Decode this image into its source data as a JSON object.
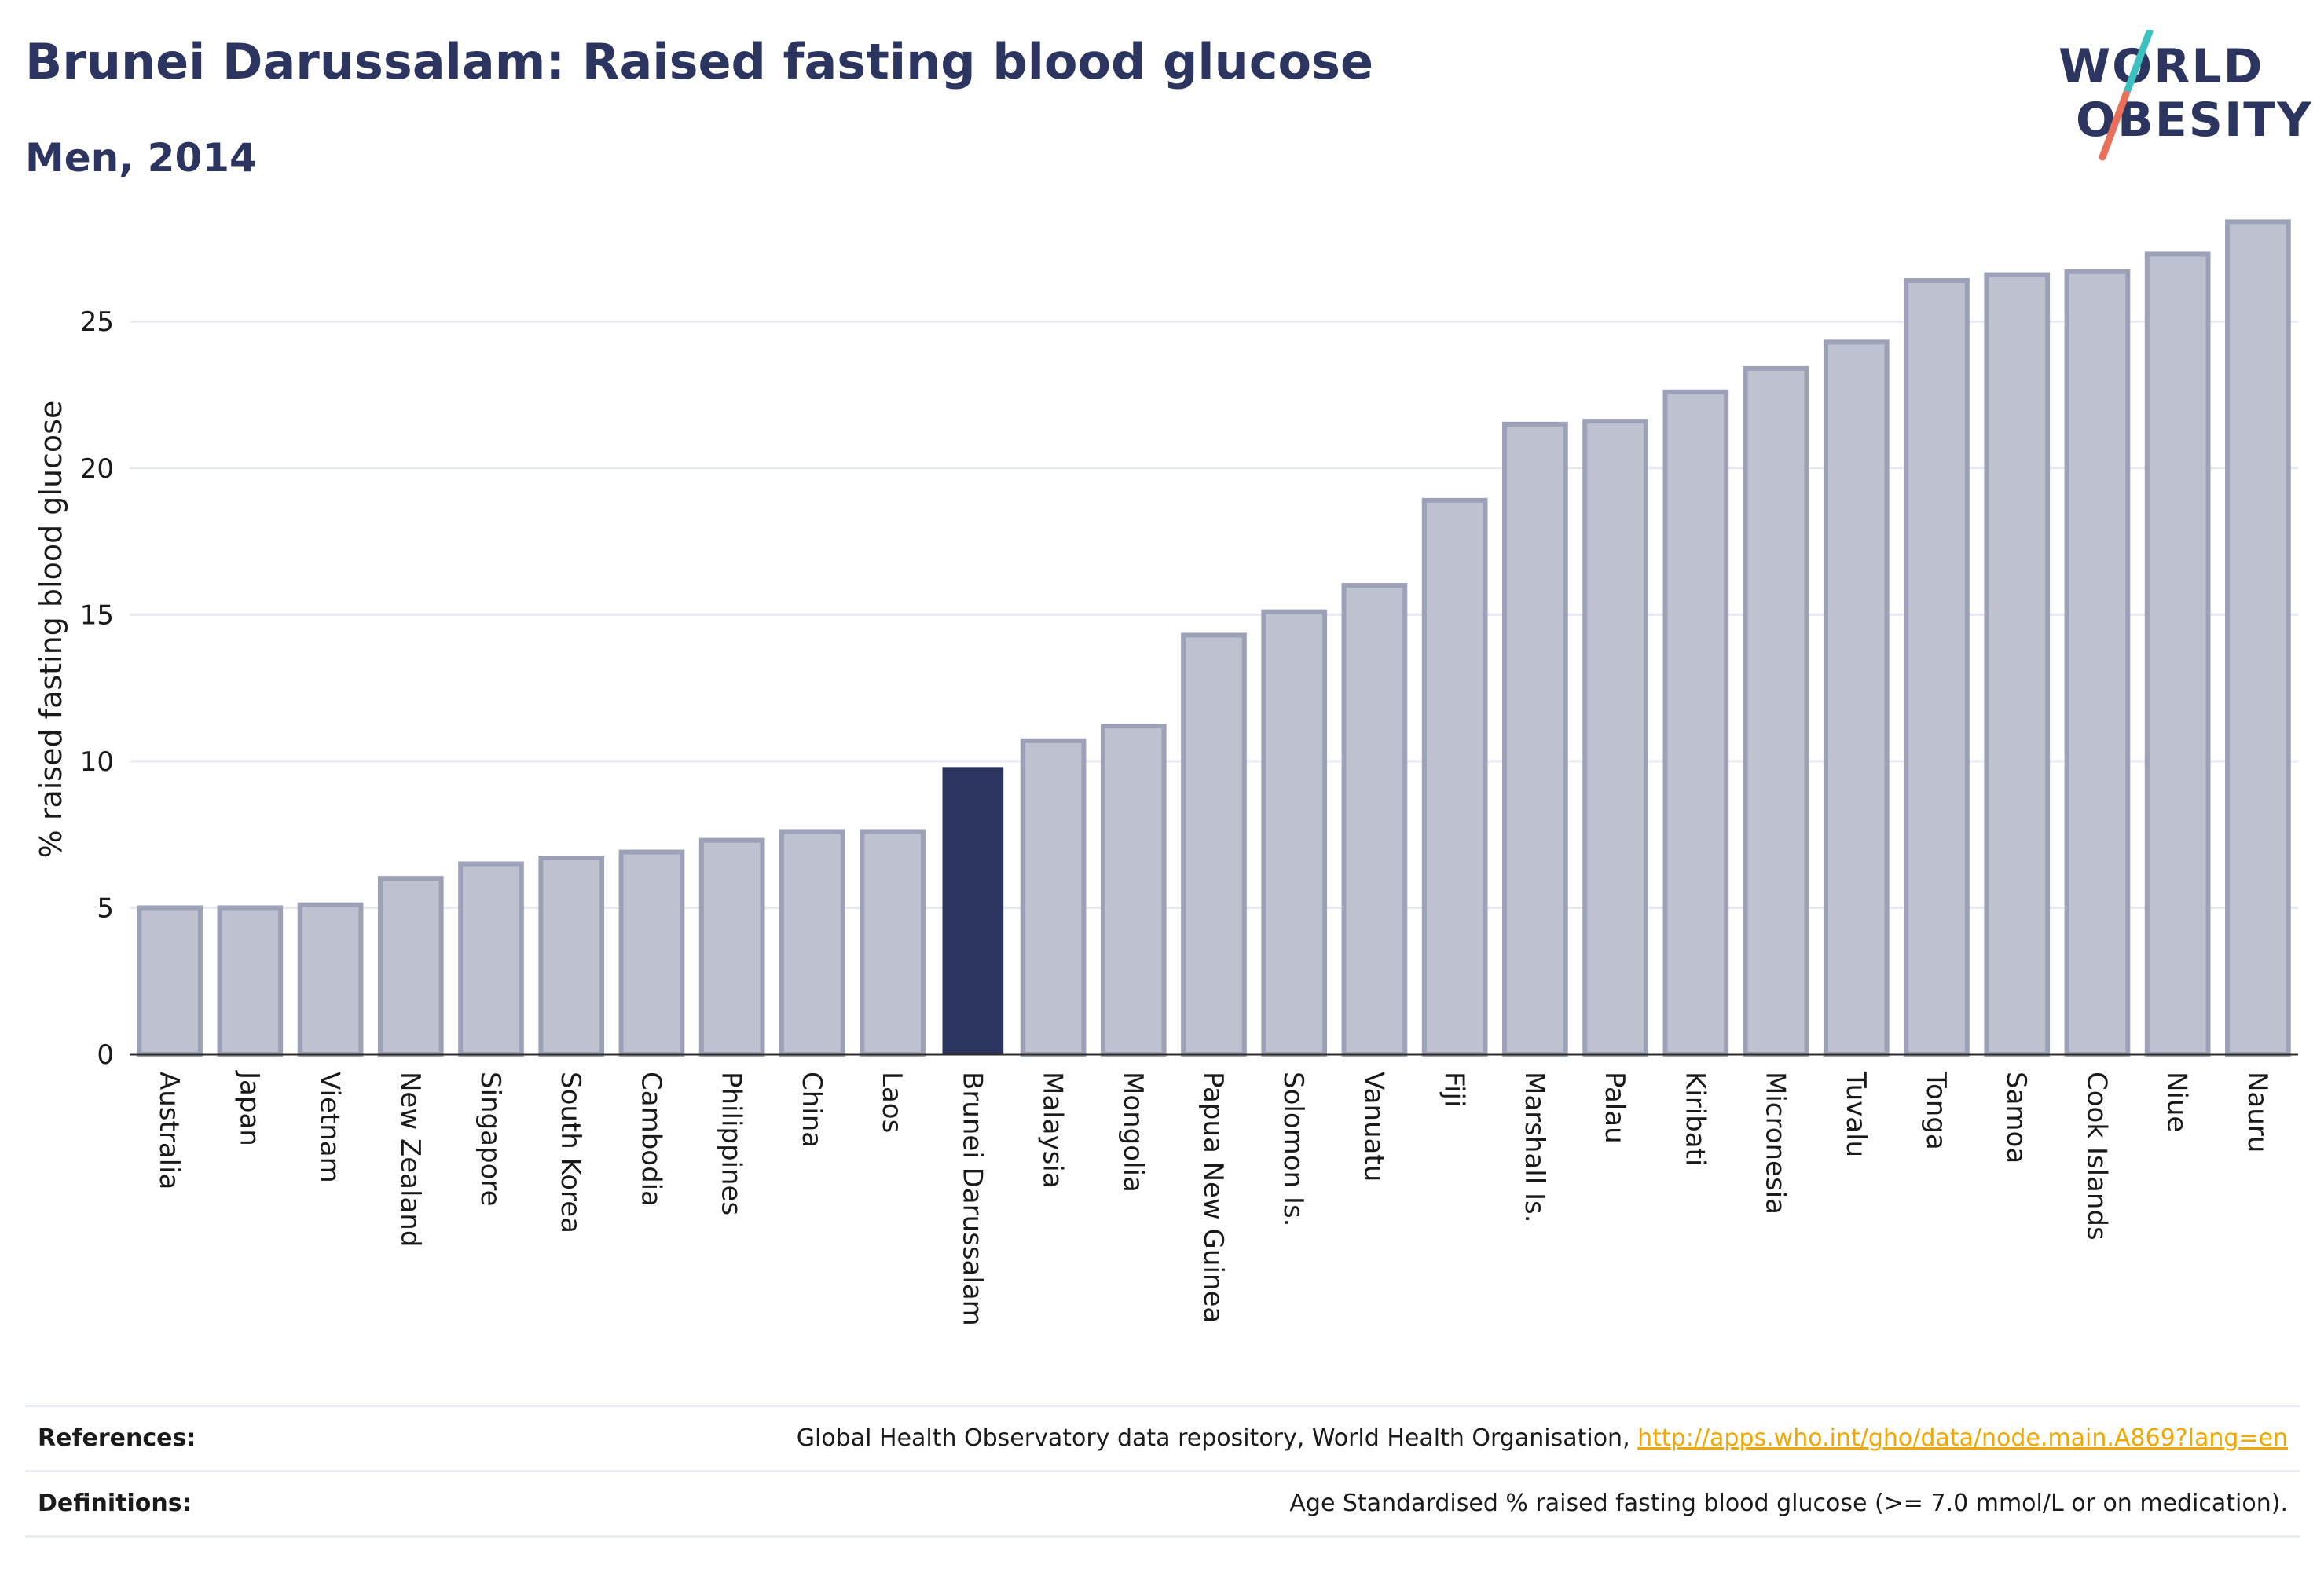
{
  "header": {
    "title": "Brunei Darussalam: Raised fasting blood glucose",
    "subtitle": "Men, 2014"
  },
  "logo": {
    "line1": "WORLD",
    "line2": "OBESITY",
    "colors": {
      "text": "#2b3560",
      "slash_top": "#3cc0c0",
      "slash_bottom": "#e8705a"
    }
  },
  "chart_data": {
    "type": "bar",
    "title": "",
    "xlabel": "",
    "ylabel": "% raised fasting blood glucose",
    "ylim": [
      0,
      29
    ],
    "yticks": [
      0,
      5,
      10,
      15,
      20,
      25
    ],
    "grid": true,
    "categories": [
      "Australia",
      "Japan",
      "Vietnam",
      "New Zealand",
      "Singapore",
      "South Korea",
      "Cambodia",
      "Philippines",
      "China",
      "Laos",
      "Brunei Darussalam",
      "Malaysia",
      "Mongolia",
      "Papua New Guinea",
      "Solomon Is.",
      "Vanuatu",
      "Fiji",
      "Marshall Is.",
      "Palau",
      "Kiribati",
      "Micronesia",
      "Tuvalu",
      "Tonga",
      "Samoa",
      "Cook Islands",
      "Niue",
      "Nauru"
    ],
    "values": [
      5.0,
      5.0,
      5.1,
      6.0,
      6.5,
      6.7,
      6.9,
      7.3,
      7.6,
      7.6,
      9.8,
      10.7,
      11.2,
      14.3,
      15.1,
      16.0,
      18.9,
      21.5,
      21.6,
      22.6,
      23.4,
      24.3,
      26.4,
      26.6,
      26.7,
      27.3,
      28.4
    ],
    "highlight": "Brunei Darussalam",
    "colors": {
      "bar": "#bec1cf",
      "bar_border": "#9ca1b8",
      "highlight": "#2b3560",
      "grid": "#e8e9ef",
      "axis": "#2b2b2b"
    }
  },
  "footer": {
    "references_label": "References:",
    "references_text": "Global Health Observatory data repository, World Health Organisation, ",
    "references_link": "http://apps.who.int/gho/data/node.main.A869?lang=en",
    "definitions_label": "Definitions:",
    "definitions_text": "Age Standardised % raised fasting blood glucose (>= 7.0 mmol/L or on medication)."
  }
}
